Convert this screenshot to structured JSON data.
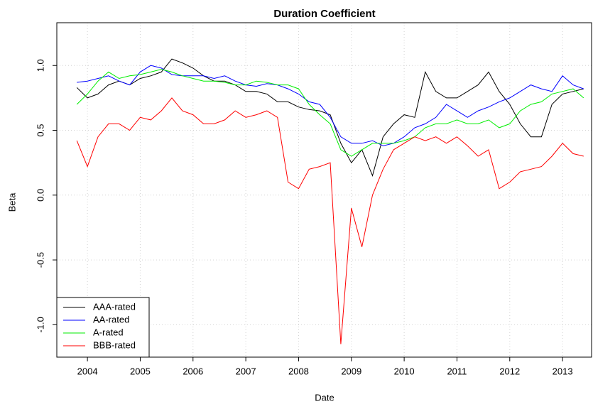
{
  "chart_data": {
    "type": "line",
    "title": "Duration Coefficient",
    "xlabel": "Date",
    "ylabel": "Beta",
    "x": [
      2003.8,
      2004.0,
      2004.2,
      2004.4,
      2004.6,
      2004.8,
      2005.0,
      2005.2,
      2005.4,
      2005.6,
      2005.8,
      2006.0,
      2006.2,
      2006.4,
      2006.6,
      2006.8,
      2007.0,
      2007.2,
      2007.4,
      2007.6,
      2007.8,
      2008.0,
      2008.2,
      2008.4,
      2008.6,
      2008.8,
      2009.0,
      2009.2,
      2009.4,
      2009.6,
      2009.8,
      2010.0,
      2010.2,
      2010.4,
      2010.6,
      2010.8,
      2011.0,
      2011.2,
      2011.4,
      2011.6,
      2011.8,
      2012.0,
      2012.2,
      2012.4,
      2012.6,
      2012.8,
      2013.0,
      2013.2,
      2013.4
    ],
    "series": [
      {
        "name": "AAA-rated",
        "color": "#000000",
        "values": [
          0.83,
          0.75,
          0.78,
          0.85,
          0.88,
          0.85,
          0.9,
          0.92,
          0.95,
          1.05,
          1.02,
          0.98,
          0.92,
          0.88,
          0.88,
          0.85,
          0.8,
          0.8,
          0.78,
          0.72,
          0.72,
          0.68,
          0.66,
          0.65,
          0.62,
          0.4,
          0.25,
          0.35,
          0.15,
          0.45,
          0.55,
          0.62,
          0.6,
          0.95,
          0.8,
          0.75,
          0.75,
          0.8,
          0.85,
          0.95,
          0.8,
          0.7,
          0.55,
          0.45,
          0.45,
          0.7,
          0.78,
          0.8,
          0.82
        ]
      },
      {
        "name": "AA-rated",
        "color": "#0000ff",
        "values": [
          0.87,
          0.88,
          0.9,
          0.92,
          0.88,
          0.85,
          0.95,
          1.0,
          0.98,
          0.93,
          0.92,
          0.92,
          0.92,
          0.9,
          0.92,
          0.88,
          0.85,
          0.84,
          0.86,
          0.85,
          0.82,
          0.78,
          0.72,
          0.7,
          0.6,
          0.45,
          0.4,
          0.4,
          0.42,
          0.38,
          0.4,
          0.45,
          0.52,
          0.55,
          0.6,
          0.7,
          0.65,
          0.6,
          0.65,
          0.68,
          0.72,
          0.75,
          0.8,
          0.85,
          0.82,
          0.8,
          0.92,
          0.85,
          0.82
        ]
      },
      {
        "name": "A-rated",
        "color": "#00ee00",
        "values": [
          0.7,
          0.78,
          0.88,
          0.95,
          0.9,
          0.92,
          0.93,
          0.95,
          0.97,
          0.95,
          0.92,
          0.9,
          0.88,
          0.88,
          0.87,
          0.85,
          0.85,
          0.88,
          0.87,
          0.85,
          0.85,
          0.82,
          0.7,
          0.62,
          0.55,
          0.35,
          0.3,
          0.35,
          0.4,
          0.4,
          0.4,
          0.42,
          0.45,
          0.52,
          0.55,
          0.55,
          0.58,
          0.55,
          0.55,
          0.58,
          0.52,
          0.55,
          0.65,
          0.7,
          0.72,
          0.78,
          0.8,
          0.82,
          0.75
        ]
      },
      {
        "name": "BBB-rated",
        "color": "#ff0000",
        "values": [
          0.42,
          0.22,
          0.45,
          0.55,
          0.55,
          0.5,
          0.6,
          0.58,
          0.65,
          0.75,
          0.65,
          0.62,
          0.55,
          0.55,
          0.58,
          0.65,
          0.6,
          0.62,
          0.65,
          0.6,
          0.1,
          0.05,
          0.2,
          0.22,
          0.25,
          -1.15,
          -0.1,
          -0.4,
          0.0,
          0.2,
          0.35,
          0.4,
          0.45,
          0.42,
          0.45,
          0.4,
          0.45,
          0.38,
          0.3,
          0.35,
          0.05,
          0.1,
          0.18,
          0.2,
          0.22,
          0.3,
          0.4,
          0.32,
          0.3
        ]
      }
    ],
    "xlim": [
      2003.42,
      2013.55
    ],
    "xticks": [
      2004,
      2005,
      2006,
      2007,
      2008,
      2009,
      2010,
      2011,
      2012,
      2013
    ],
    "ylim": [
      -1.25,
      1.33
    ],
    "yticks": [
      {
        "value": -1,
        "label": "-1.0"
      },
      {
        "value": -0.5,
        "label": "-0.5"
      },
      {
        "value": 0,
        "label": "0.0"
      },
      {
        "value": 0.5,
        "label": "0.5"
      },
      {
        "value": 1,
        "label": "1.0"
      }
    ],
    "grid": true,
    "legend": "bottomleft"
  }
}
